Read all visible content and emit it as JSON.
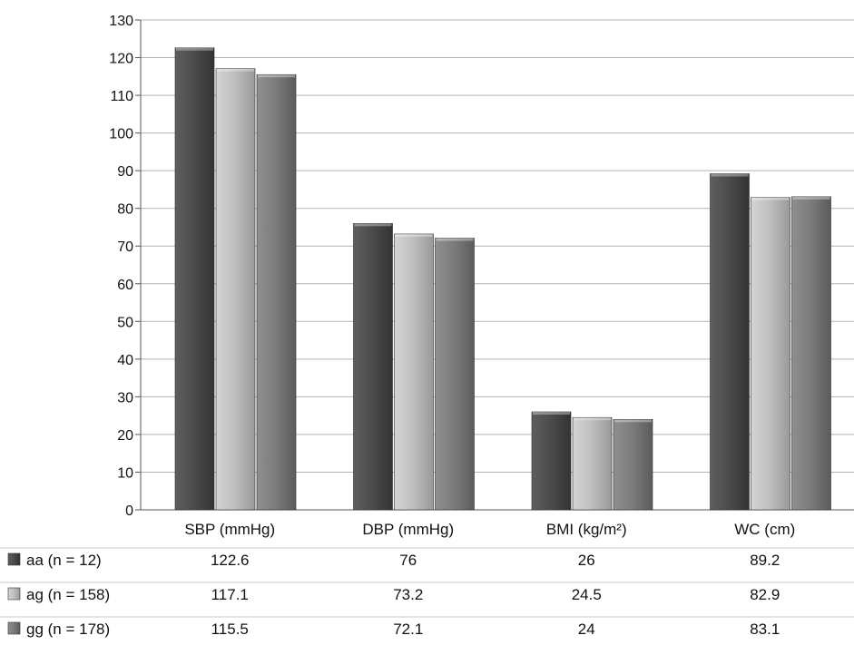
{
  "chart_data": {
    "type": "bar",
    "categories": [
      "SBP (mmHg)",
      "DBP (mmHg)",
      "BMI (kg/m²)",
      "WC (cm)"
    ],
    "series": [
      {
        "name": "aa (n = 12)",
        "values": [
          122.6,
          76,
          26,
          89.2
        ],
        "color": "#4a4a4a"
      },
      {
        "name": "ag (n = 158)",
        "values": [
          117.1,
          73.2,
          24.5,
          82.9
        ],
        "color": "#b9b9b9"
      },
      {
        "name": "gg (n = 178)",
        "values": [
          115.5,
          72.1,
          24,
          83.1
        ],
        "color": "#7a7a7a"
      }
    ],
    "ylim": [
      0,
      130
    ],
    "yticks": [
      0,
      10,
      20,
      30,
      40,
      50,
      60,
      70,
      80,
      90,
      100,
      110,
      120,
      130
    ],
    "grid": true,
    "legend_placement": "bottom data table",
    "data_table": true
  }
}
